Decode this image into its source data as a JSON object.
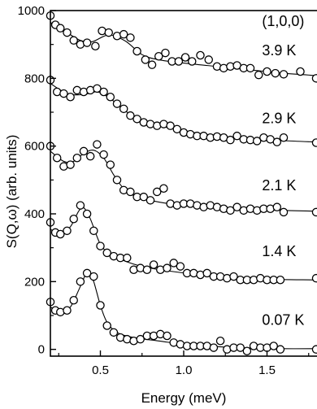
{
  "chart_data": {
    "type": "scatter",
    "title": "",
    "xlabel": "Energy (meV)",
    "ylabel": "S(Q,ω) (arb. units)",
    "xlim": [
      0.2,
      1.8
    ],
    "ylim": [
      -20,
      1000
    ],
    "x_ticks": [
      0.5,
      1.0,
      1.5
    ],
    "x_tick_labels": [
      "0.5",
      "1.0",
      "1.5"
    ],
    "y_ticks": [
      0,
      200,
      400,
      600,
      800,
      1000
    ],
    "y_tick_labels": [
      "0",
      "200",
      "400",
      "600",
      "800",
      "1000"
    ],
    "annotations": [
      {
        "text": "(1,0,0)",
        "x": 1.47,
        "y": 955
      },
      {
        "text": "3.9 K",
        "x": 1.47,
        "y": 868
      },
      {
        "text": "2.9 K",
        "x": 1.47,
        "y": 668
      },
      {
        "text": "2.1 K",
        "x": 1.47,
        "y": 470
      },
      {
        "text": "1.4 K",
        "x": 1.47,
        "y": 275
      },
      {
        "text": "0.07 K",
        "x": 1.47,
        "y": 72
      }
    ],
    "series": [
      {
        "points": [
          [
            0.2,
            985
          ],
          [
            0.23,
            958
          ],
          [
            0.26,
            948
          ],
          [
            0.3,
            935
          ],
          [
            0.34,
            912
          ],
          [
            0.38,
            900
          ],
          [
            0.42,
            905
          ],
          [
            0.47,
            895
          ],
          [
            0.51,
            940
          ],
          [
            0.55,
            935
          ],
          [
            0.6,
            925
          ],
          [
            0.64,
            930
          ],
          [
            0.68,
            920
          ],
          [
            0.72,
            880
          ],
          [
            0.77,
            855
          ],
          [
            0.81,
            840
          ],
          [
            0.85,
            865
          ],
          [
            0.89,
            875
          ],
          [
            0.93,
            850
          ],
          [
            0.97,
            850
          ],
          [
            1.01,
            862
          ],
          [
            1.05,
            850
          ],
          [
            1.1,
            868
          ],
          [
            1.15,
            855
          ],
          [
            1.2,
            835
          ],
          [
            1.24,
            830
          ],
          [
            1.28,
            835
          ],
          [
            1.32,
            838
          ],
          [
            1.36,
            830
          ],
          [
            1.4,
            830
          ],
          [
            1.45,
            810
          ],
          [
            1.5,
            820
          ],
          [
            1.55,
            815
          ],
          [
            1.6,
            812
          ],
          [
            1.7,
            820
          ],
          [
            1.8,
            800
          ]
        ],
        "curve": [
          [
            0.2,
            965
          ],
          [
            0.3,
            935
          ],
          [
            0.38,
            912
          ],
          [
            0.45,
            908
          ],
          [
            0.55,
            928
          ],
          [
            0.65,
            910
          ],
          [
            0.75,
            870
          ],
          [
            0.85,
            855
          ],
          [
            1.0,
            845
          ],
          [
            1.2,
            835
          ],
          [
            1.4,
            825
          ],
          [
            1.6,
            815
          ],
          [
            1.8,
            808
          ]
        ]
      },
      {
        "points": [
          [
            0.2,
            795
          ],
          [
            0.24,
            760
          ],
          [
            0.28,
            755
          ],
          [
            0.32,
            745
          ],
          [
            0.36,
            765
          ],
          [
            0.4,
            760
          ],
          [
            0.44,
            765
          ],
          [
            0.48,
            770
          ],
          [
            0.52,
            760
          ],
          [
            0.56,
            745
          ],
          [
            0.6,
            725
          ],
          [
            0.64,
            710
          ],
          [
            0.68,
            690
          ],
          [
            0.72,
            680
          ],
          [
            0.76,
            670
          ],
          [
            0.8,
            665
          ],
          [
            0.84,
            660
          ],
          [
            0.88,
            665
          ],
          [
            0.92,
            660
          ],
          [
            0.96,
            650
          ],
          [
            1.0,
            640
          ],
          [
            1.04,
            635
          ],
          [
            1.08,
            630
          ],
          [
            1.12,
            630
          ],
          [
            1.16,
            625
          ],
          [
            1.2,
            628
          ],
          [
            1.24,
            625
          ],
          [
            1.28,
            618
          ],
          [
            1.32,
            630
          ],
          [
            1.36,
            620
          ],
          [
            1.4,
            618
          ],
          [
            1.44,
            615
          ],
          [
            1.48,
            625
          ],
          [
            1.52,
            620
          ],
          [
            1.56,
            612
          ],
          [
            1.6,
            625
          ],
          [
            1.8,
            610
          ]
        ],
        "curve": [
          [
            0.2,
            785
          ],
          [
            0.3,
            755
          ],
          [
            0.4,
            752
          ],
          [
            0.48,
            760
          ],
          [
            0.56,
            740
          ],
          [
            0.66,
            700
          ],
          [
            0.78,
            670
          ],
          [
            0.9,
            655
          ],
          [
            1.0,
            645
          ],
          [
            1.2,
            630
          ],
          [
            1.4,
            622
          ],
          [
            1.6,
            616
          ],
          [
            1.8,
            612
          ]
        ]
      },
      {
        "points": [
          [
            0.2,
            600
          ],
          [
            0.24,
            565
          ],
          [
            0.28,
            540
          ],
          [
            0.32,
            545
          ],
          [
            0.36,
            565
          ],
          [
            0.4,
            585
          ],
          [
            0.44,
            570
          ],
          [
            0.48,
            605
          ],
          [
            0.52,
            575
          ],
          [
            0.56,
            545
          ],
          [
            0.6,
            500
          ],
          [
            0.64,
            470
          ],
          [
            0.68,
            465
          ],
          [
            0.72,
            450
          ],
          [
            0.76,
            450
          ],
          [
            0.8,
            440
          ],
          [
            0.84,
            465
          ],
          [
            0.88,
            475
          ],
          [
            0.92,
            430
          ],
          [
            0.96,
            425
          ],
          [
            1.0,
            430
          ],
          [
            1.04,
            430
          ],
          [
            1.08,
            425
          ],
          [
            1.12,
            420
          ],
          [
            1.16,
            425
          ],
          [
            1.2,
            420
          ],
          [
            1.24,
            415
          ],
          [
            1.28,
            410
          ],
          [
            1.32,
            420
          ],
          [
            1.36,
            410
          ],
          [
            1.4,
            415
          ],
          [
            1.44,
            410
          ],
          [
            1.48,
            415
          ],
          [
            1.52,
            415
          ],
          [
            1.56,
            420
          ],
          [
            1.6,
            405
          ],
          [
            1.8,
            405
          ]
        ],
        "curve": [
          [
            0.2,
            585
          ],
          [
            0.28,
            555
          ],
          [
            0.34,
            555
          ],
          [
            0.4,
            578
          ],
          [
            0.46,
            588
          ],
          [
            0.52,
            565
          ],
          [
            0.58,
            515
          ],
          [
            0.64,
            475
          ],
          [
            0.72,
            450
          ],
          [
            0.85,
            435
          ],
          [
            1.0,
            425
          ],
          [
            1.2,
            418
          ],
          [
            1.4,
            413
          ],
          [
            1.6,
            410
          ],
          [
            1.8,
            408
          ]
        ]
      },
      {
        "points": [
          [
            0.2,
            375
          ],
          [
            0.23,
            345
          ],
          [
            0.26,
            340
          ],
          [
            0.3,
            350
          ],
          [
            0.34,
            385
          ],
          [
            0.38,
            425
          ],
          [
            0.42,
            400
          ],
          [
            0.46,
            350
          ],
          [
            0.5,
            305
          ],
          [
            0.54,
            285
          ],
          [
            0.58,
            275
          ],
          [
            0.62,
            270
          ],
          [
            0.66,
            270
          ],
          [
            0.7,
            235
          ],
          [
            0.74,
            240
          ],
          [
            0.78,
            235
          ],
          [
            0.82,
            250
          ],
          [
            0.86,
            235
          ],
          [
            0.9,
            240
          ],
          [
            0.94,
            255
          ],
          [
            0.98,
            245
          ],
          [
            1.02,
            225
          ],
          [
            1.06,
            225
          ],
          [
            1.1,
            220
          ],
          [
            1.14,
            225
          ],
          [
            1.18,
            215
          ],
          [
            1.22,
            215
          ],
          [
            1.26,
            210
          ],
          [
            1.3,
            215
          ],
          [
            1.34,
            205
          ],
          [
            1.38,
            205
          ],
          [
            1.42,
            205
          ],
          [
            1.46,
            210
          ],
          [
            1.5,
            205
          ],
          [
            1.54,
            205
          ],
          [
            1.58,
            205
          ],
          [
            1.8,
            210
          ]
        ],
        "curve": [
          [
            0.2,
            355
          ],
          [
            0.26,
            338
          ],
          [
            0.32,
            362
          ],
          [
            0.37,
            408
          ],
          [
            0.4,
            418
          ],
          [
            0.44,
            385
          ],
          [
            0.5,
            310
          ],
          [
            0.56,
            282
          ],
          [
            0.64,
            262
          ],
          [
            0.75,
            245
          ],
          [
            0.9,
            232
          ],
          [
            1.1,
            220
          ],
          [
            1.3,
            212
          ],
          [
            1.5,
            207
          ],
          [
            1.8,
            205
          ]
        ]
      },
      {
        "points": [
          [
            0.2,
            140
          ],
          [
            0.23,
            115
          ],
          [
            0.26,
            110
          ],
          [
            0.3,
            115
          ],
          [
            0.34,
            145
          ],
          [
            0.38,
            200
          ],
          [
            0.42,
            225
          ],
          [
            0.46,
            215
          ],
          [
            0.5,
            130
          ],
          [
            0.54,
            70
          ],
          [
            0.58,
            50
          ],
          [
            0.62,
            35
          ],
          [
            0.66,
            30
          ],
          [
            0.7,
            25
          ],
          [
            0.74,
            30
          ],
          [
            0.78,
            40
          ],
          [
            0.82,
            40
          ],
          [
            0.86,
            45
          ],
          [
            0.9,
            40
          ],
          [
            0.94,
            20
          ],
          [
            0.98,
            15
          ],
          [
            1.02,
            10
          ],
          [
            1.06,
            10
          ],
          [
            1.1,
            10
          ],
          [
            1.14,
            10
          ],
          [
            1.18,
            5
          ],
          [
            1.22,
            25
          ],
          [
            1.26,
            0
          ],
          [
            1.3,
            5
          ],
          [
            1.34,
            5
          ],
          [
            1.38,
            -5
          ],
          [
            1.42,
            10
          ],
          [
            1.46,
            5
          ],
          [
            1.5,
            5
          ],
          [
            1.54,
            10
          ],
          [
            1.58,
            0
          ],
          [
            1.8,
            0
          ]
        ],
        "curve": [
          [
            0.2,
            125
          ],
          [
            0.27,
            108
          ],
          [
            0.32,
            125
          ],
          [
            0.37,
            175
          ],
          [
            0.41,
            220
          ],
          [
            0.43,
            232
          ],
          [
            0.46,
            200
          ],
          [
            0.5,
            130
          ],
          [
            0.54,
            80
          ],
          [
            0.6,
            50
          ],
          [
            0.7,
            35
          ],
          [
            0.85,
            25
          ],
          [
            1.0,
            15
          ],
          [
            1.2,
            8
          ],
          [
            1.4,
            4
          ],
          [
            1.6,
            2
          ],
          [
            1.8,
            2
          ]
        ]
      }
    ]
  }
}
